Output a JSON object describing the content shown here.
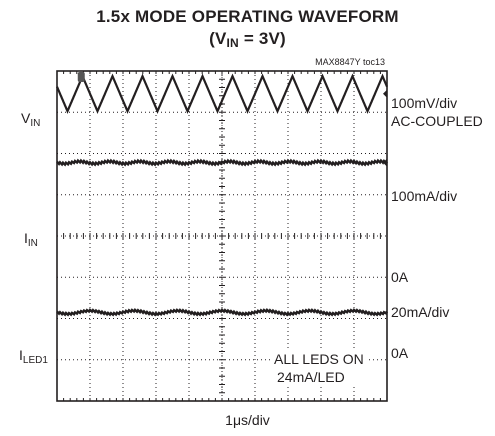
{
  "title_line1": "1.5x MODE OPERATING WAVEFORM",
  "title_line2_prefix": "(V",
  "title_line2_sub": "IN",
  "title_line2_suffix": " = 3V)",
  "figure_tag": "MAX8847Y toc13",
  "chart_data": {
    "type": "line",
    "title": "1.5x MODE OPERATING WAVEFORM (VIN = 3V)",
    "xlabel": "1μs/div",
    "x_divisions": 10,
    "y_divisions": 8,
    "channels": [
      {
        "label_main": "V",
        "label_sub": "IN",
        "scale": "100mV/div",
        "scale_note": "AC-COUPLED",
        "shape": "triangle ripple",
        "cycles": 11,
        "peak_to_peak_div": 0.85,
        "center_div": 7.45
      },
      {
        "label_main": "I",
        "label_sub": "IN",
        "scale": "100mA/div",
        "zero_ref": "0A",
        "shape": "dc with ripple",
        "level_div": 5.78,
        "baseline_div": 4.0,
        "zero_div": 2.55
      },
      {
        "label_main": "I",
        "label_sub": "LED1",
        "scale": "20mA/div",
        "zero_ref": "0A",
        "shape": "dc with ripple",
        "level_div": 2.15,
        "baseline_div": 0.9
      }
    ]
  },
  "annotation_line1": "ALL LEDS ON",
  "annotation_line2": "24mA/LED"
}
